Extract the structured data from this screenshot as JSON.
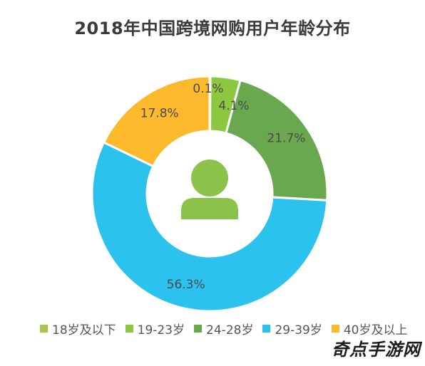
{
  "chart_data": {
    "type": "pie",
    "title": "2018年中国跨境网购用户年龄分布",
    "categories": [
      "18岁及以下",
      "19-23岁",
      "24-28岁",
      "29-39岁",
      "40岁及以上"
    ],
    "values": [
      0.1,
      4.1,
      21.7,
      56.3,
      17.8
    ],
    "data_labels": [
      "0.1%",
      "4.1%",
      "21.7%",
      "56.3%",
      "17.8%"
    ],
    "colors": [
      "#a5c846",
      "#8dc63f",
      "#6aa84f",
      "#2bc3ee",
      "#fbb92b"
    ],
    "center_icon": "person-icon",
    "center_icon_color": "#8bc34a",
    "legend_position": "bottom"
  },
  "legend_labels": [
    "18岁及以下",
    "19-23岁",
    "24-28岁",
    "29-39岁",
    "40岁及以上"
  ],
  "watermark": "奇点手游网"
}
